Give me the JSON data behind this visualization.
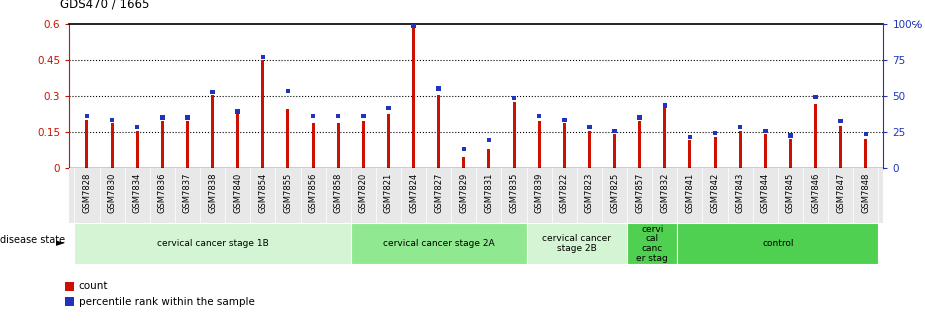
{
  "title": "GDS470 / 1665",
  "samples": [
    "GSM7828",
    "GSM7830",
    "GSM7834",
    "GSM7836",
    "GSM7837",
    "GSM7838",
    "GSM7840",
    "GSM7854",
    "GSM7855",
    "GSM7856",
    "GSM7858",
    "GSM7820",
    "GSM7821",
    "GSM7824",
    "GSM7827",
    "GSM7829",
    "GSM7831",
    "GSM7835",
    "GSM7839",
    "GSM7822",
    "GSM7823",
    "GSM7825",
    "GSM7857",
    "GSM7832",
    "GSM7841",
    "GSM7842",
    "GSM7843",
    "GSM7844",
    "GSM7845",
    "GSM7846",
    "GSM7847",
    "GSM7848"
  ],
  "count_values": [
    0.2,
    0.185,
    0.155,
    0.195,
    0.195,
    0.305,
    0.225,
    0.45,
    0.245,
    0.185,
    0.185,
    0.195,
    0.225,
    0.58,
    0.305,
    0.045,
    0.08,
    0.275,
    0.195,
    0.185,
    0.155,
    0.14,
    0.195,
    0.255,
    0.115,
    0.13,
    0.155,
    0.14,
    0.12,
    0.265,
    0.175,
    0.12
  ],
  "percentile_values": [
    0.215,
    0.2,
    0.17,
    0.21,
    0.21,
    0.315,
    0.235,
    0.46,
    0.32,
    0.215,
    0.215,
    0.215,
    0.25,
    0.59,
    0.33,
    0.08,
    0.115,
    0.29,
    0.215,
    0.2,
    0.17,
    0.155,
    0.21,
    0.26,
    0.13,
    0.145,
    0.17,
    0.155,
    0.135,
    0.295,
    0.195,
    0.14
  ],
  "disease_groups": [
    {
      "label": "cervical cancer stage 1B",
      "start": 0,
      "end": 11,
      "color": "#d4f5d4"
    },
    {
      "label": "cervical cancer stage 2A",
      "start": 11,
      "end": 18,
      "color": "#90e890"
    },
    {
      "label": "cervical cancer\nstage 2B",
      "start": 18,
      "end": 22,
      "color": "#d4f5d4"
    },
    {
      "label": "cervi\ncal\ncanc\ner stag",
      "start": 22,
      "end": 24,
      "color": "#50d050"
    },
    {
      "label": "control",
      "start": 24,
      "end": 32,
      "color": "#50d050"
    }
  ],
  "bar_color": "#cc1100",
  "percentile_color": "#2233bb",
  "ylim_left": [
    0.0,
    0.6
  ],
  "ylim_right": [
    0,
    100
  ],
  "yticks_left": [
    0,
    0.15,
    0.3,
    0.45,
    0.6
  ],
  "ytick_labels_left": [
    "0",
    "0.15",
    "0.3",
    "0.45",
    "0.6"
  ],
  "yticks_right": [
    0,
    25,
    50,
    75,
    100
  ],
  "ytick_labels_right": [
    "0",
    "25",
    "50",
    "75",
    "100℅"
  ],
  "bar_width": 0.12,
  "blue_square_size": 0.018
}
